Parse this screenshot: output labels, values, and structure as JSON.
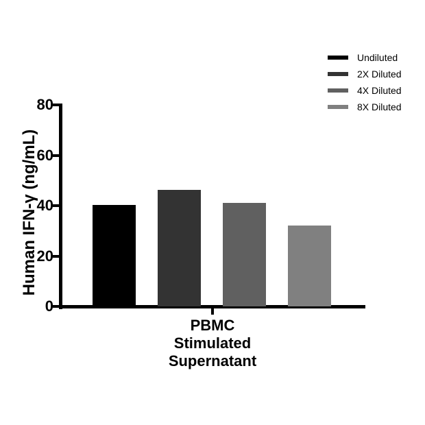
{
  "chart_data": {
    "type": "bar",
    "title": "",
    "ylabel": "Human IFN-γ (ng/mL)",
    "xlabel": "PBMC Stimulated Supernatant",
    "xlabel_lines": [
      "PBMC",
      "Stimulated",
      "Supernatant"
    ],
    "ylim": [
      0,
      80
    ],
    "yticks": [
      0,
      20,
      40,
      60,
      80
    ],
    "grid": false,
    "legend_position": "top-right",
    "categories": [
      "PBMC Stimulated Supernatant"
    ],
    "series": [
      {
        "name": "Undiluted",
        "color": "#000000",
        "values": [
          40.4
        ]
      },
      {
        "name": "2X Diluted",
        "color": "#333333",
        "values": [
          46.3
        ]
      },
      {
        "name": "4X Diluted",
        "color": "#606060",
        "values": [
          41.2
        ]
      },
      {
        "name": "8X Diluted",
        "color": "#808080",
        "values": [
          32.2
        ]
      }
    ],
    "colors": {
      "axis": "#000000",
      "text": "#000000",
      "background": "#ffffff"
    }
  }
}
